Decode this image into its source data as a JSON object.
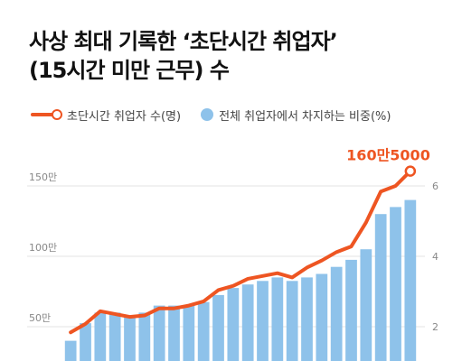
{
  "title": {
    "line1": "사상 최대 기록한 ‘초단시간 취업자’",
    "line2": "(15시간 미만 근무) 수"
  },
  "legend": {
    "line_label": "초단시간 취업자 수(명)",
    "bar_label": "전체 취업자에서 차지하는 비중(%)"
  },
  "colors": {
    "line": "#ee5522",
    "bar": "#8ec2ea",
    "grid": "#e3e3e3"
  },
  "chart_data": {
    "type": "bar",
    "left_axis": {
      "ticks": [
        50,
        100,
        150
      ],
      "tick_labels": [
        "50만",
        "100만",
        "150만"
      ],
      "unit": "만명"
    },
    "right_axis": {
      "ticks": [
        2,
        4,
        6
      ],
      "tick_labels": [
        "2",
        "4",
        "6"
      ],
      "unit": "%"
    },
    "grid": true,
    "series": [
      {
        "type": "bar",
        "axis": "right",
        "values": [
          1.6,
          2.1,
          2.4,
          2.4,
          2.3,
          2.4,
          2.6,
          2.6,
          2.6,
          2.7,
          2.9,
          3.1,
          3.2,
          3.3,
          3.4,
          3.3,
          3.4,
          3.5,
          3.7,
          3.9,
          4.2,
          5.2,
          5.4,
          5.6
        ]
      },
      {
        "type": "line",
        "axis": "left",
        "values": [
          46,
          52,
          61,
          59,
          57,
          58,
          63,
          63,
          65,
          68,
          76,
          79,
          84,
          86,
          88,
          85,
          92,
          97,
          103,
          107,
          124,
          146,
          150,
          160.5
        ]
      }
    ],
    "annotation": {
      "text": "160만5000",
      "value": 160.5
    }
  }
}
